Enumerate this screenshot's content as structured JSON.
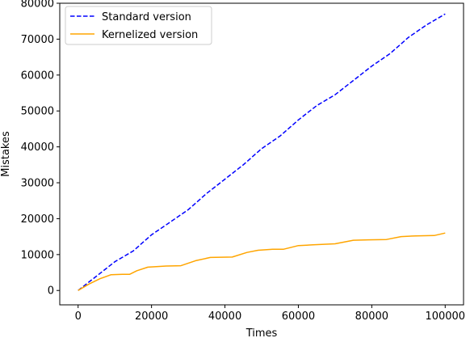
{
  "chart_data": {
    "type": "line",
    "xlabel": "Times",
    "ylabel": "Mistakes",
    "xlim": [
      -5000,
      105000
    ],
    "ylim": [
      -4000,
      80000
    ],
    "xticks": [
      0,
      20000,
      40000,
      60000,
      80000,
      100000
    ],
    "xtick_labels": [
      "0",
      "20000",
      "40000",
      "60000",
      "80000",
      "100000"
    ],
    "yticks": [
      0,
      10000,
      20000,
      30000,
      40000,
      50000,
      60000,
      70000,
      80000
    ],
    "ytick_labels": [
      "0",
      "10000",
      "20000",
      "30000",
      "40000",
      "50000",
      "60000",
      "70000",
      "80000"
    ],
    "grid": false,
    "legend_position": "top-left",
    "series": [
      {
        "name": "Standard version",
        "color": "#0000ff",
        "style": "dashed",
        "x": [
          0,
          5000,
          10000,
          15000,
          20000,
          25000,
          30000,
          35000,
          40000,
          45000,
          50000,
          55000,
          60000,
          65000,
          70000,
          75000,
          80000,
          85000,
          90000,
          95000,
          100000
        ],
        "values": [
          0,
          4000,
          8000,
          11000,
          15500,
          19000,
          22500,
          27000,
          31000,
          35000,
          39500,
          43000,
          47500,
          51500,
          54500,
          58500,
          62500,
          66000,
          70500,
          74000,
          77000
        ]
      },
      {
        "name": "Kernelized version",
        "color": "#ffa500",
        "style": "solid",
        "x": [
          0,
          3000,
          6000,
          9000,
          12000,
          14000,
          16000,
          19000,
          24000,
          28000,
          32000,
          36000,
          42000,
          46000,
          49000,
          53000,
          56000,
          60000,
          64000,
          70000,
          75000,
          79000,
          84000,
          88000,
          92000,
          97000,
          100000
        ],
        "values": [
          0,
          1800,
          3300,
          4400,
          4500,
          4500,
          5500,
          6500,
          6800,
          6900,
          8300,
          9200,
          9300,
          10600,
          11200,
          11500,
          11500,
          12500,
          12700,
          13000,
          14000,
          14100,
          14200,
          15000,
          15200,
          15300,
          16000
        ]
      }
    ]
  }
}
